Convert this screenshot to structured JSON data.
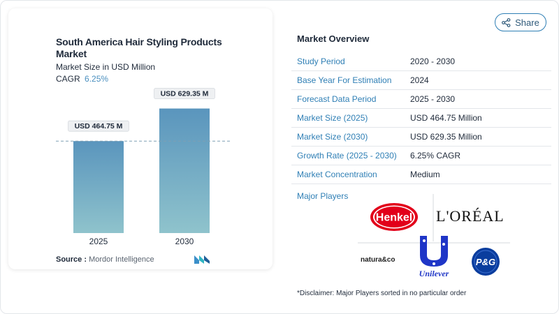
{
  "header": {
    "share_label": "Share"
  },
  "chart_panel": {
    "title": "South America Hair Styling Products Market",
    "subtitle": "Market Size in USD Million",
    "cagr_label": "CAGR",
    "cagr_value": "6.25%",
    "source_label": "Source :",
    "source_value": "Mordor Intelligence"
  },
  "chart_data": {
    "type": "bar",
    "title": "South America Hair Styling Products Market",
    "ylabel": "Market Size in USD Million",
    "categories": [
      "2025",
      "2030"
    ],
    "values": [
      464.75,
      629.35
    ],
    "data_labels": [
      "USD 464.75 M",
      "USD 629.35 M"
    ],
    "ylim": [
      0,
      700
    ],
    "grid": false,
    "reference_line": 464.75,
    "bar_color_top": "#5a95bd",
    "bar_color_bottom": "#8fc3cc"
  },
  "overview": {
    "title": "Market Overview",
    "rows": [
      {
        "label": "Study Period",
        "value": "2020 - 2030"
      },
      {
        "label": "Base Year For Estimation",
        "value": "2024"
      },
      {
        "label": "Forecast Data Period",
        "value": "2025 - 2030"
      },
      {
        "label": "Market Size (2025)",
        "value": "USD 464.75 Million"
      },
      {
        "label": "Market Size (2030)",
        "value": "USD 629.35 Million"
      },
      {
        "label": "Growth Rate (2025 - 2030)",
        "value": "6.25% CAGR"
      },
      {
        "label": "Market Concentration",
        "value": "Medium"
      }
    ],
    "players_label": "Major Players",
    "players": {
      "henkel": "Henkel",
      "loreal": "L'ORÉAL",
      "natura": "natura&co",
      "unilever": "Unilever",
      "pg": "P&G"
    },
    "disclaimer": "*Disclaimer: Major Players sorted in no particular order"
  },
  "colors": {
    "accent": "#2f7fb5",
    "henkel_red": "#e2001a",
    "unilever_blue": "#1f36c7",
    "pg_blue": "#0a3d9e"
  }
}
